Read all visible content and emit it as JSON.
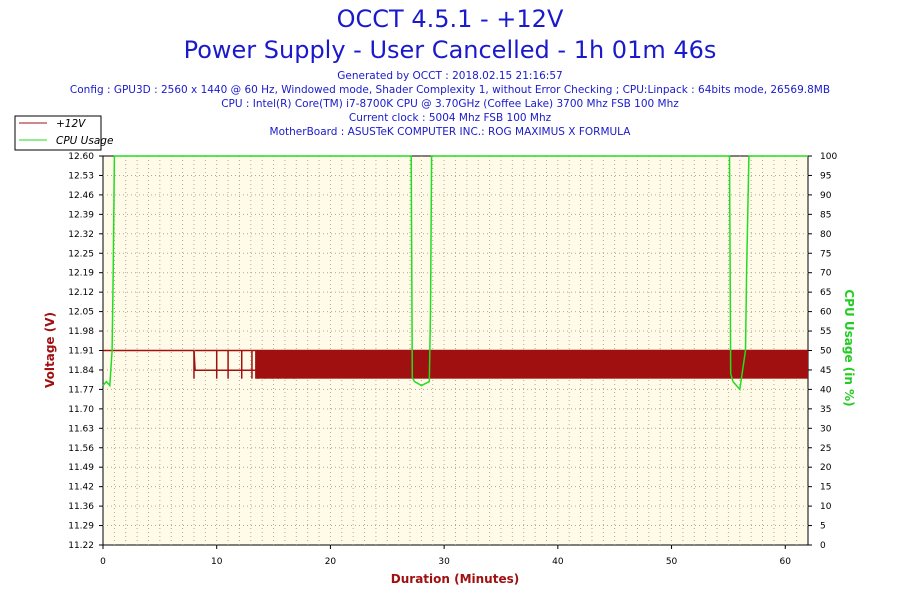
{
  "chart_data": {
    "type": "line",
    "title": "OCCT 4.5.1 - +12V",
    "subtitle": "Power Supply - User Cancelled - 1h 01m 46s",
    "info_lines": [
      "Generated by OCCT : 2018.02.15 21:16:57",
      "Config : GPU3D : 2560 x 1440 @ 60 Hz, Windowed mode, Shader Complexity 1, without Error Checking ; CPU:Linpack : 64bits mode, 26569.8MB",
      "CPU : Intel(R) Core(TM) i7-8700K CPU @ 3.70GHz (Coffee Lake) 3700 Mhz FSB 100 Mhz",
      "Current clock : 5004 Mhz FSB 100 Mhz",
      "MotherBoard : ASUSTeK COMPUTER INC.: ROG MAXIMUS X FORMULA"
    ],
    "xlabel": "Duration (Minutes)",
    "ylabel": "Voltage (V)",
    "y2label": "CPU Usage (in %)",
    "xlim": [
      0,
      62
    ],
    "ylim": [
      11.22,
      12.6
    ],
    "y2lim": [
      0,
      100
    ],
    "x_ticks": [
      0,
      10,
      20,
      30,
      40,
      50,
      60
    ],
    "y_ticks": [
      "11.22",
      "11.29",
      "11.36",
      "11.42",
      "11.49",
      "11.56",
      "11.63",
      "11.70",
      "11.77",
      "11.84",
      "11.91",
      "11.98",
      "12.05",
      "12.12",
      "12.19",
      "12.25",
      "12.32",
      "12.39",
      "12.46",
      "12.53",
      "12.60"
    ],
    "y2_ticks": [
      0,
      5,
      10,
      15,
      20,
      25,
      30,
      35,
      40,
      45,
      50,
      55,
      60,
      65,
      70,
      75,
      80,
      85,
      90,
      95,
      100
    ],
    "legend_position": "top-left",
    "series": [
      {
        "name": "+12V",
        "axis": "left",
        "color": "#a01010",
        "x": [
          0,
          8,
          8.1,
          62
        ],
        "y": [
          11.91,
          11.91,
          11.84,
          11.84
        ],
        "band_x": [
          8.1,
          62
        ],
        "band_y": [
          11.81,
          11.91
        ]
      },
      {
        "name": "CPU Usage",
        "axis": "right",
        "color": "#22dd22",
        "x": [
          0,
          0.3,
          0.6,
          0.8,
          0.9,
          1.0,
          27.1,
          27.2,
          27.4,
          28.0,
          28.7,
          28.8,
          28.9,
          55.1,
          55.2,
          55.4,
          56.0,
          56.5,
          56.6,
          56.8,
          62
        ],
        "y": [
          41,
          42,
          41,
          50,
          70,
          100,
          100,
          43,
          42,
          41,
          42,
          60,
          100,
          100,
          44,
          42,
          40,
          50,
          70,
          100,
          100
        ]
      }
    ]
  },
  "colors": {
    "title": "#1a1acc",
    "plot_bg": "#fffbe8",
    "grid": "#b0a890",
    "voltage": "#a01010",
    "cpu": "#22dd22"
  }
}
